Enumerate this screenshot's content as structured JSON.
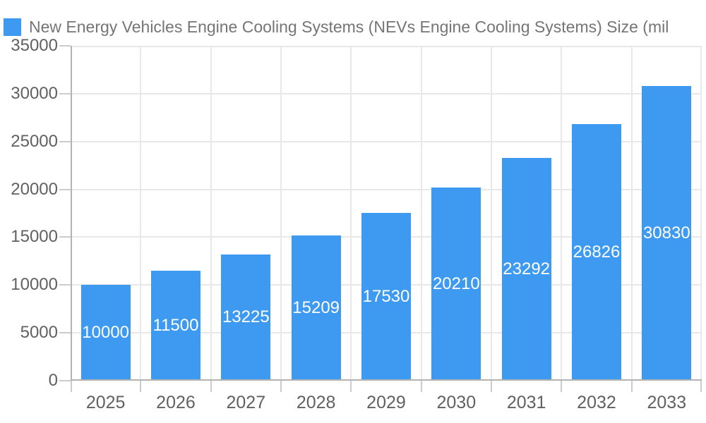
{
  "legend": {
    "items": [
      {
        "label": "New Energy Vehicles Engine Cooling Systems (NEVs Engine Cooling Systems) Size (mil",
        "swatch_color": "#3D9AF0"
      }
    ]
  },
  "chart_data": {
    "type": "bar",
    "title": "",
    "categories": [
      "2025",
      "2026",
      "2027",
      "2028",
      "2029",
      "2030",
      "2031",
      "2032",
      "2033"
    ],
    "series": [
      {
        "name": "New Energy Vehicles Engine Cooling Systems (NEVs Engine Cooling Systems) Size (mil",
        "values": [
          10000,
          11500,
          13225,
          15209,
          17530,
          20210,
          23292,
          26826,
          30830
        ]
      }
    ],
    "value_labels": [
      "10000",
      "11500",
      "13225",
      "15209",
      "17530",
      "20210",
      "23292",
      "26826",
      "30830"
    ],
    "xlabel": "",
    "ylabel": "",
    "ylim": [
      0,
      35000
    ],
    "yticks": [
      0,
      5000,
      10000,
      15000,
      20000,
      25000,
      30000,
      35000
    ],
    "ytick_labels": [
      "0",
      "5000",
      "10000",
      "15000",
      "20000",
      "25000",
      "30000",
      "35000"
    ],
    "grid": true,
    "legend_position": "top-left",
    "colors": {
      "bar": "#3D9AF0",
      "value_label": "#ffffff",
      "axis_label": "#616161",
      "legend_text": "#757575",
      "gridline": "#e8e8e8",
      "axis_line": "#b3b3b3",
      "tick": "#cccccc"
    }
  }
}
